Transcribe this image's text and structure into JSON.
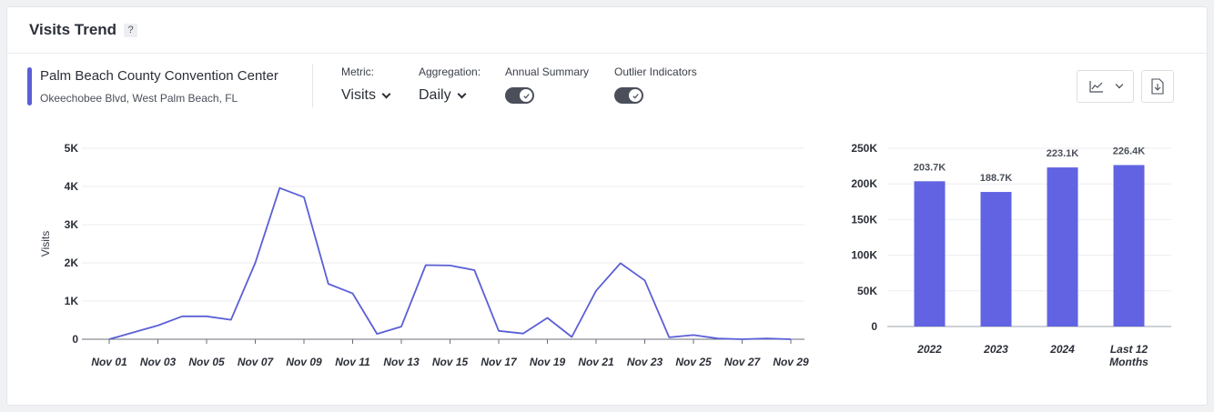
{
  "header": {
    "title": "Visits Trend",
    "help": "?"
  },
  "venue": {
    "name": "Palm Beach County Convention Center",
    "address": "Okeechobee Blvd, West Palm Beach, FL",
    "accent": "#5b5fd6"
  },
  "controls": {
    "metric": {
      "label": "Metric:",
      "value": "Visits"
    },
    "aggregation": {
      "label": "Aggregation:",
      "value": "Daily"
    },
    "annual_summary": {
      "label": "Annual Summary",
      "on": true
    },
    "outlier_indicators": {
      "label": "Outlier Indicators",
      "on": true
    }
  },
  "toolbar": {
    "chart_type_icon": "line-chart-icon",
    "download_icon": "download-icon"
  },
  "chart_data": [
    {
      "type": "line",
      "ylabel": "Visits",
      "ylim": [
        0,
        5000
      ],
      "yticks": [
        "0",
        "1K",
        "2K",
        "3K",
        "4K",
        "5K"
      ],
      "ytick_values": [
        0,
        1000,
        2000,
        3000,
        4000,
        5000
      ],
      "xtick_labels": [
        "Nov 01",
        "Nov 03",
        "Nov 05",
        "Nov 07",
        "Nov 09",
        "Nov 11",
        "Nov 13",
        "Nov 15",
        "Nov 17",
        "Nov 19",
        "Nov 21",
        "Nov 23",
        "Nov 25",
        "Nov 27",
        "Nov 29"
      ],
      "color": "#5b5fd6",
      "grid": true,
      "series": [
        {
          "values": [
            0,
            180,
            360,
            600,
            600,
            510,
            2000,
            3960,
            3720,
            1450,
            1200,
            140,
            330,
            1940,
            1930,
            1810,
            220,
            150,
            560,
            60,
            1270,
            1990,
            1540,
            50,
            110,
            20,
            0,
            20,
            0
          ]
        }
      ]
    },
    {
      "type": "bar",
      "categories": [
        "2022",
        "2023",
        "2024",
        "Last 12 Months"
      ],
      "values": [
        203700,
        188700,
        223100,
        226400
      ],
      "value_labels": [
        "203.7K",
        "188.7K",
        "223.1K",
        "226.4K"
      ],
      "ylim": [
        0,
        250000
      ],
      "yticks": [
        "0",
        "50K",
        "100K",
        "150K",
        "200K",
        "250K"
      ],
      "ytick_values": [
        0,
        50000,
        100000,
        150000,
        200000,
        250000
      ],
      "color": "#6163e3",
      "grid": true
    }
  ]
}
